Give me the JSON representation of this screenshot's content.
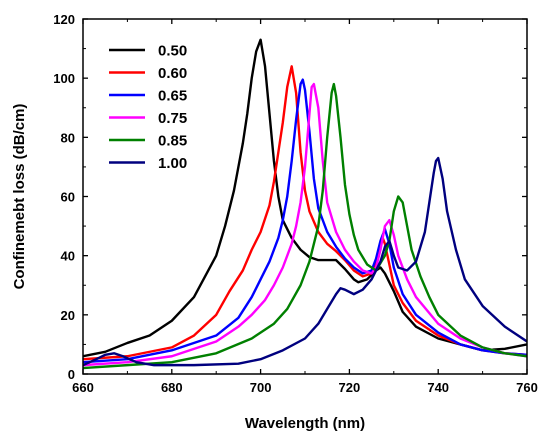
{
  "chart_data": {
    "type": "line",
    "xlabel": "Wavelength (nm)",
    "ylabel": "Confinemebt loss (dB/cm)",
    "xlim": [
      660,
      760
    ],
    "ylim": [
      0,
      120
    ],
    "x_ticks": [
      660,
      680,
      700,
      720,
      740,
      760
    ],
    "y_ticks": [
      0,
      20,
      40,
      60,
      80,
      100,
      120
    ],
    "legend_position": "top-left",
    "grid": false,
    "series": [
      {
        "name": "0.50",
        "color": "#000000",
        "points": [
          [
            660,
            6
          ],
          [
            665,
            7.5
          ],
          [
            670,
            10.5
          ],
          [
            675,
            13
          ],
          [
            680,
            18
          ],
          [
            685,
            26
          ],
          [
            690,
            40
          ],
          [
            692,
            50
          ],
          [
            694,
            62
          ],
          [
            696,
            78
          ],
          [
            697,
            88
          ],
          [
            698,
            100
          ],
          [
            699,
            109
          ],
          [
            700,
            113
          ],
          [
            701,
            104
          ],
          [
            702,
            88
          ],
          [
            703,
            72
          ],
          [
            704,
            60
          ],
          [
            705,
            52
          ],
          [
            707,
            46
          ],
          [
            709,
            42
          ],
          [
            711,
            39.5
          ],
          [
            713,
            38.5
          ],
          [
            715,
            38.5
          ],
          [
            717,
            38.5
          ],
          [
            719,
            35.5
          ],
          [
            721,
            32
          ],
          [
            722,
            31
          ],
          [
            724,
            32
          ],
          [
            726,
            35
          ],
          [
            727,
            36
          ],
          [
            728,
            34
          ],
          [
            730,
            28
          ],
          [
            732,
            21
          ],
          [
            735,
            16
          ],
          [
            740,
            12
          ],
          [
            745,
            10
          ],
          [
            750,
            8
          ],
          [
            755,
            8.5
          ],
          [
            760,
            10
          ]
        ]
      },
      {
        "name": "0.60",
        "color": "#ff0000",
        "points": [
          [
            660,
            5
          ],
          [
            670,
            6
          ],
          [
            680,
            9
          ],
          [
            685,
            13
          ],
          [
            690,
            20
          ],
          [
            693,
            28
          ],
          [
            696,
            35
          ],
          [
            698,
            42
          ],
          [
            700,
            48
          ],
          [
            702,
            57
          ],
          [
            703,
            65
          ],
          [
            704,
            75
          ],
          [
            705,
            85
          ],
          [
            706,
            97
          ],
          [
            707,
            104
          ],
          [
            708,
            95
          ],
          [
            709,
            75
          ],
          [
            710,
            62
          ],
          [
            711,
            55
          ],
          [
            713,
            48
          ],
          [
            715,
            44
          ],
          [
            717,
            41.5
          ],
          [
            719,
            38.5
          ],
          [
            721,
            35
          ],
          [
            723,
            33
          ],
          [
            725,
            34
          ],
          [
            726,
            38
          ],
          [
            727,
            44
          ],
          [
            727.5,
            46
          ],
          [
            728,
            44
          ],
          [
            729,
            37
          ],
          [
            730,
            30
          ],
          [
            732,
            24
          ],
          [
            735,
            18
          ],
          [
            740,
            13
          ],
          [
            745,
            10
          ],
          [
            750,
            8
          ],
          [
            755,
            7
          ],
          [
            760,
            6.5
          ]
        ]
      },
      {
        "name": "0.65",
        "color": "#0000ff",
        "points": [
          [
            660,
            4
          ],
          [
            670,
            5
          ],
          [
            680,
            8
          ],
          [
            690,
            13
          ],
          [
            695,
            19
          ],
          [
            698,
            26
          ],
          [
            700,
            32
          ],
          [
            702,
            38
          ],
          [
            704,
            46
          ],
          [
            705,
            52
          ],
          [
            706,
            60
          ],
          [
            707,
            72
          ],
          [
            708,
            86
          ],
          [
            709,
            98
          ],
          [
            709.5,
            99.5
          ],
          [
            710,
            96
          ],
          [
            711,
            82
          ],
          [
            712,
            66
          ],
          [
            713,
            56
          ],
          [
            715,
            48
          ],
          [
            717,
            43
          ],
          [
            719,
            39
          ],
          [
            721,
            36
          ],
          [
            723,
            34
          ],
          [
            725,
            35
          ],
          [
            726,
            39
          ],
          [
            727,
            45
          ],
          [
            728,
            49
          ],
          [
            729,
            44
          ],
          [
            730,
            36
          ],
          [
            732,
            27
          ],
          [
            735,
            20
          ],
          [
            740,
            14
          ],
          [
            745,
            10
          ],
          [
            750,
            8
          ],
          [
            755,
            7
          ],
          [
            760,
            6.5
          ]
        ]
      },
      {
        "name": "0.75",
        "color": "#ff00ff",
        "points": [
          [
            660,
            3
          ],
          [
            670,
            4
          ],
          [
            680,
            6
          ],
          [
            690,
            11
          ],
          [
            695,
            16
          ],
          [
            698,
            20
          ],
          [
            701,
            25
          ],
          [
            703,
            30
          ],
          [
            705,
            36
          ],
          [
            707,
            44
          ],
          [
            708,
            50
          ],
          [
            709,
            58
          ],
          [
            710,
            70
          ],
          [
            711,
            88
          ],
          [
            711.5,
            97
          ],
          [
            712,
            98
          ],
          [
            713,
            90
          ],
          [
            714,
            72
          ],
          [
            715,
            58
          ],
          [
            717,
            48
          ],
          [
            719,
            42
          ],
          [
            721,
            38
          ],
          [
            723,
            35
          ],
          [
            725,
            34
          ],
          [
            726,
            36
          ],
          [
            727,
            42
          ],
          [
            728,
            50
          ],
          [
            729,
            52
          ],
          [
            730,
            47
          ],
          [
            731,
            40
          ],
          [
            733,
            32
          ],
          [
            735,
            26
          ],
          [
            740,
            17
          ],
          [
            745,
            12
          ],
          [
            750,
            9
          ],
          [
            755,
            7
          ],
          [
            760,
            6
          ]
        ]
      },
      {
        "name": "0.85",
        "color": "#008000",
        "points": [
          [
            660,
            2
          ],
          [
            670,
            3
          ],
          [
            680,
            4
          ],
          [
            690,
            7
          ],
          [
            698,
            12
          ],
          [
            703,
            17
          ],
          [
            706,
            22
          ],
          [
            709,
            30
          ],
          [
            711,
            38
          ],
          [
            713,
            50
          ],
          [
            714,
            62
          ],
          [
            715,
            80
          ],
          [
            716,
            95
          ],
          [
            716.5,
            98
          ],
          [
            717,
            94
          ],
          [
            718,
            80
          ],
          [
            719,
            64
          ],
          [
            720,
            54
          ],
          [
            721,
            47
          ],
          [
            722,
            42
          ],
          [
            724,
            37
          ],
          [
            726,
            35
          ],
          [
            728,
            40
          ],
          [
            729,
            45
          ],
          [
            730,
            55
          ],
          [
            731,
            60
          ],
          [
            732,
            58
          ],
          [
            733,
            50
          ],
          [
            734,
            42
          ],
          [
            736,
            33
          ],
          [
            738,
            26
          ],
          [
            740,
            20
          ],
          [
            745,
            13
          ],
          [
            750,
            9
          ],
          [
            755,
            7
          ],
          [
            760,
            6
          ]
        ]
      },
      {
        "name": "1.00",
        "color": "#00007f",
        "points": [
          [
            660,
            3
          ],
          [
            663,
            5
          ],
          [
            665,
            6.5
          ],
          [
            667,
            7
          ],
          [
            669,
            6
          ],
          [
            672,
            4
          ],
          [
            676,
            3
          ],
          [
            685,
            3
          ],
          [
            695,
            3.5
          ],
          [
            700,
            5
          ],
          [
            705,
            8
          ],
          [
            710,
            12
          ],
          [
            713,
            17
          ],
          [
            715,
            22
          ],
          [
            717,
            27
          ],
          [
            718,
            29
          ],
          [
            719,
            28.5
          ],
          [
            721,
            27
          ],
          [
            723,
            28.5
          ],
          [
            725,
            32
          ],
          [
            727,
            38
          ],
          [
            728,
            43
          ],
          [
            729,
            45
          ],
          [
            730,
            40
          ],
          [
            731,
            36
          ],
          [
            733,
            35
          ],
          [
            735,
            38
          ],
          [
            737,
            48
          ],
          [
            738,
            58
          ],
          [
            739,
            68
          ],
          [
            739.5,
            72
          ],
          [
            740,
            73
          ],
          [
            741,
            66
          ],
          [
            742,
            55
          ],
          [
            744,
            42
          ],
          [
            746,
            32
          ],
          [
            750,
            23
          ],
          [
            755,
            16
          ],
          [
            760,
            11
          ]
        ]
      }
    ]
  }
}
